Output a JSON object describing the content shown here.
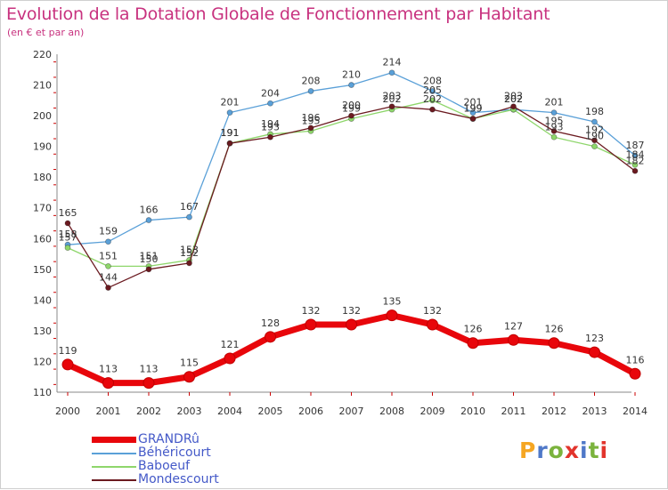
{
  "header": {
    "title": "Evolution de la Dotation Globale de Fonctionnement par Habitant",
    "subtitle": "(en € et par an)"
  },
  "logo": {
    "text": "Proxiti",
    "colors": [
      "#f5a623",
      "#4f78c8",
      "#7bb33d",
      "#e2342c",
      "#4f78c8",
      "#7bb33d",
      "#e2342c"
    ]
  },
  "chart_data": {
    "type": "line",
    "title": "Evolution de la Dotation Globale de Fonctionnement par Habitant",
    "subtitle": "(en € et par an)",
    "x": [
      "2000",
      "2001",
      "2002",
      "2003",
      "2004",
      "2005",
      "2006",
      "2007",
      "2008",
      "2009",
      "2010",
      "2011",
      "2012",
      "2013",
      "2014"
    ],
    "ylim": [
      110,
      220
    ],
    "yticks": [
      110,
      120,
      130,
      140,
      150,
      160,
      170,
      180,
      190,
      200,
      210,
      220
    ],
    "grid": false,
    "legend": "bottom-left",
    "series": [
      {
        "name": "GRANDRû",
        "color": "#e8060b",
        "values": [
          119,
          113,
          113,
          115,
          121,
          128,
          132,
          132,
          135,
          132,
          126,
          127,
          126,
          123,
          116
        ]
      },
      {
        "name": "Béhéricourt",
        "color": "#5aa0d8",
        "values": [
          158,
          159,
          166,
          167,
          201,
          204,
          208,
          210,
          214,
          208,
          201,
          202,
          201,
          198,
          187
        ]
      },
      {
        "name": "Baboeuf",
        "color": "#8ed66b",
        "values": [
          157,
          151,
          151,
          153,
          191,
          194,
          195,
          199,
          202,
          205,
          199,
          202,
          193,
          190,
          184
        ]
      },
      {
        "name": "Mondescourt",
        "color": "#6b1a20",
        "values": [
          165,
          144,
          150,
          152,
          191,
          193,
          196,
          200,
          203,
          202,
          199,
          203,
          195,
          192,
          182
        ]
      }
    ],
    "data_labels": [
      {
        "series": 0,
        "values": [
          "119",
          "113",
          "113",
          "115",
          "121",
          "128",
          "132",
          "132",
          "135",
          "132",
          "126",
          "127",
          "126",
          "123",
          "116"
        ]
      },
      {
        "series": 1,
        "values": [
          "158",
          "159",
          "166",
          "167",
          "201",
          "204",
          "208",
          "210",
          "214",
          "208",
          "201",
          "202",
          "201",
          "198",
          "187"
        ]
      },
      {
        "series": 2,
        "values": [
          "157",
          "151",
          "151",
          "153",
          "191",
          "194",
          "195",
          "199",
          "202",
          "205",
          "199",
          "202",
          "193",
          "190",
          "184"
        ]
      },
      {
        "series": 3,
        "values": [
          "165",
          "144",
          "150",
          "152",
          "191",
          "193",
          "196",
          "200",
          "203",
          "202",
          "199",
          "203",
          "195",
          "192",
          "182"
        ]
      }
    ]
  }
}
